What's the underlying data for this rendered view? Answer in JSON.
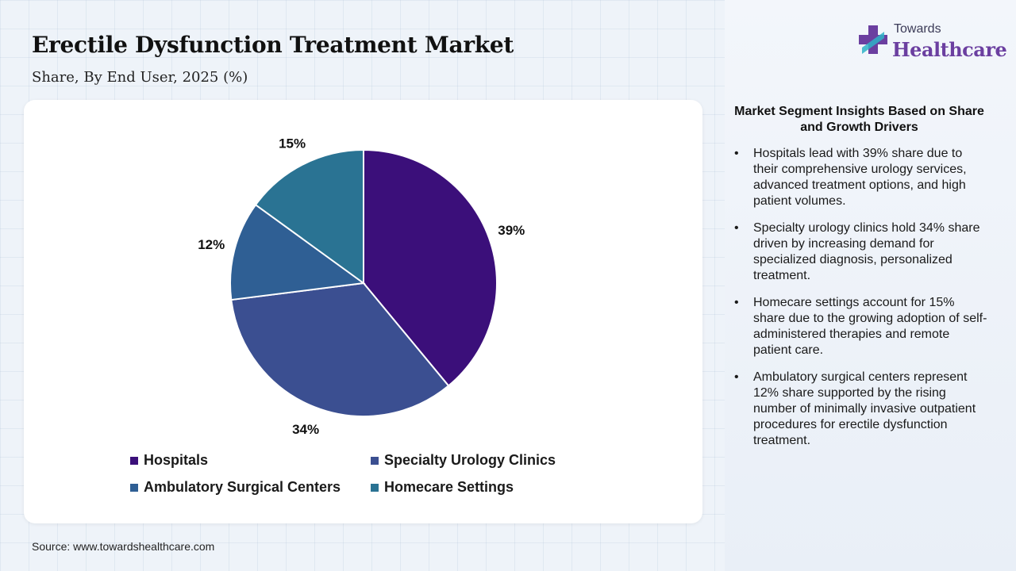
{
  "header": {
    "title": "Erectile Dysfunction Treatment Market",
    "subtitle": "Share, By End User, 2025 (%)"
  },
  "logo": {
    "top_text": "Towards",
    "main_text": "Healthcare",
    "icon": "medical-cross-icon",
    "colors": [
      "#6b3fa0",
      "#2fb3c7"
    ]
  },
  "chart_data": {
    "type": "pie",
    "categories": [
      "Hospitals",
      "Specialty Urology Clinics",
      "Ambulatory Surgical Centers",
      "Homecare Settings"
    ],
    "values": [
      39,
      34,
      12,
      15
    ],
    "labels": [
      "39%",
      "34%",
      "12%",
      "15%"
    ],
    "slice_order": [
      0,
      1,
      2,
      3
    ],
    "colors": [
      "#3b0f7a",
      "#3b4f91",
      "#2f5f94",
      "#2a7393"
    ],
    "legend_position": "bottom"
  },
  "insights": {
    "title": "Market Segment Insights Based on Share and Growth Drivers",
    "bullet": "•",
    "items": [
      "Hospitals lead with 39% share due to their comprehensive urology services, advanced treatment options, and high patient volumes.",
      "Specialty urology clinics hold 34% share driven by increasing demand for specialized diagnosis, personalized treatment.",
      "Homecare settings account for 15% share due to the growing adoption of self-administered therapies and remote patient care.",
      "Ambulatory surgical centers represent 12% share supported by the rising number of minimally invasive outpatient procedures for erectile dysfunction treatment."
    ]
  },
  "source": "Source: www.towardshealthcare.com"
}
